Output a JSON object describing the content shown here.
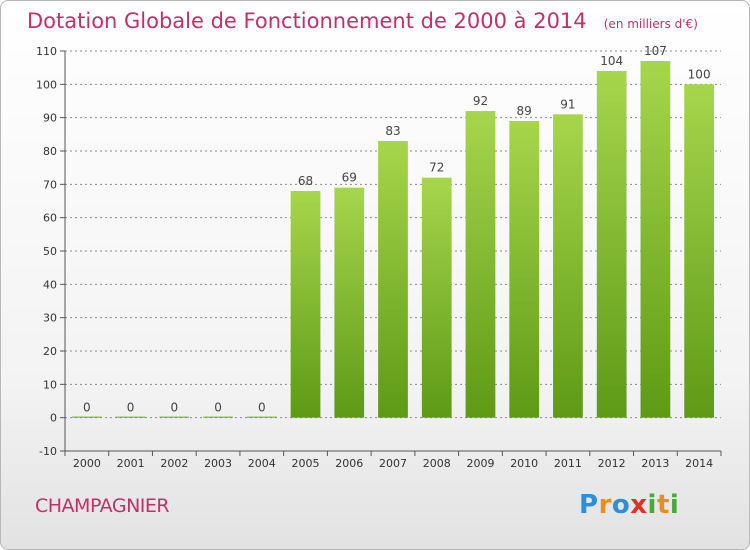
{
  "header": {
    "title": "Dotation Globale de Fonctionnement de 2000 à 2014",
    "unit": "(en milliers d'€)"
  },
  "footer": {
    "commune": "CHAMPAGNIER",
    "brand": "Proxiti"
  },
  "colors": {
    "title": "#c0306a",
    "bar_light": "#a6d64c",
    "bar_dark": "#5e9a16",
    "grid": "#888888"
  },
  "chart_data": {
    "type": "bar",
    "title": "Dotation Globale de Fonctionnement de 2000 à 2014",
    "subtitle": "(en milliers d'€)",
    "categories": [
      "2000",
      "2001",
      "2002",
      "2003",
      "2004",
      "2005",
      "2006",
      "2007",
      "2008",
      "2009",
      "2010",
      "2011",
      "2012",
      "2013",
      "2014"
    ],
    "values": [
      0,
      0,
      0,
      0,
      0,
      68,
      69,
      83,
      72,
      92,
      89,
      91,
      104,
      107,
      100
    ],
    "ylim": [
      -10,
      110
    ],
    "yticks": [
      -10,
      0,
      10,
      20,
      30,
      40,
      50,
      60,
      70,
      80,
      90,
      100,
      110
    ],
    "grid": true,
    "data_labels": true
  }
}
